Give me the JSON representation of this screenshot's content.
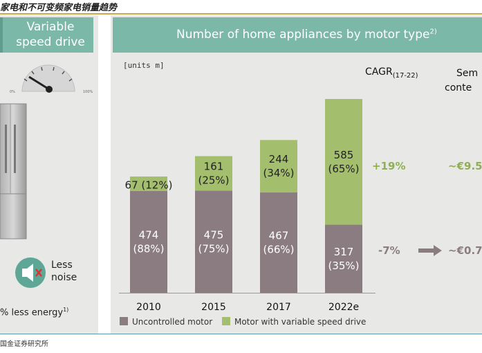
{
  "caption": "家电和不可变频家电销量趋势",
  "left_panel": {
    "title_line1": "Variable",
    "title_line2": "speed drive",
    "gauge_min_label": "0%",
    "gauge_max_label": "100%",
    "less_noise_line1": "Less",
    "less_noise_line2": "noise",
    "energy_text": "% less energy",
    "energy_footnote": "1)"
  },
  "chart_data": {
    "type": "bar",
    "stacked": true,
    "title": "Number of home appliances by motor type",
    "title_footnote": "2)",
    "units": "[units m]",
    "categories": [
      "2010",
      "2015",
      "2017",
      "2022e"
    ],
    "series": [
      {
        "name": "Uncontrolled motor",
        "color": "#8b7c81",
        "values": [
          474,
          475,
          467,
          317
        ],
        "labels": [
          [
            "474",
            "(88%)"
          ],
          [
            "475",
            "(75%)"
          ],
          [
            "467",
            "(66%)"
          ],
          [
            "317",
            "(35%)"
          ]
        ]
      },
      {
        "name": "Motor with variable speed drive",
        "color": "#a3be6c",
        "values": [
          67,
          161,
          244,
          585
        ],
        "labels": [
          [
            "67 (12%)"
          ],
          [
            "161",
            "(25%)"
          ],
          [
            "244",
            "(34%)"
          ],
          [
            "585",
            "(65%)"
          ]
        ]
      }
    ],
    "ylim": [
      0,
      902
    ],
    "cagr_header": "CAGR",
    "cagr_header_sub": "(17-22)",
    "semi_header_line1": "Sem",
    "semi_header_line2": "conte",
    "cagr_values": [
      "+19%",
      "-7%"
    ],
    "semi_values": [
      "~€9.5",
      "~€0.7"
    ]
  },
  "footer": "国金证券研究所",
  "colors": {
    "green_header": "#7cb8a8",
    "uncontrolled": "#8b7c81",
    "vsd": "#a3be6c"
  }
}
